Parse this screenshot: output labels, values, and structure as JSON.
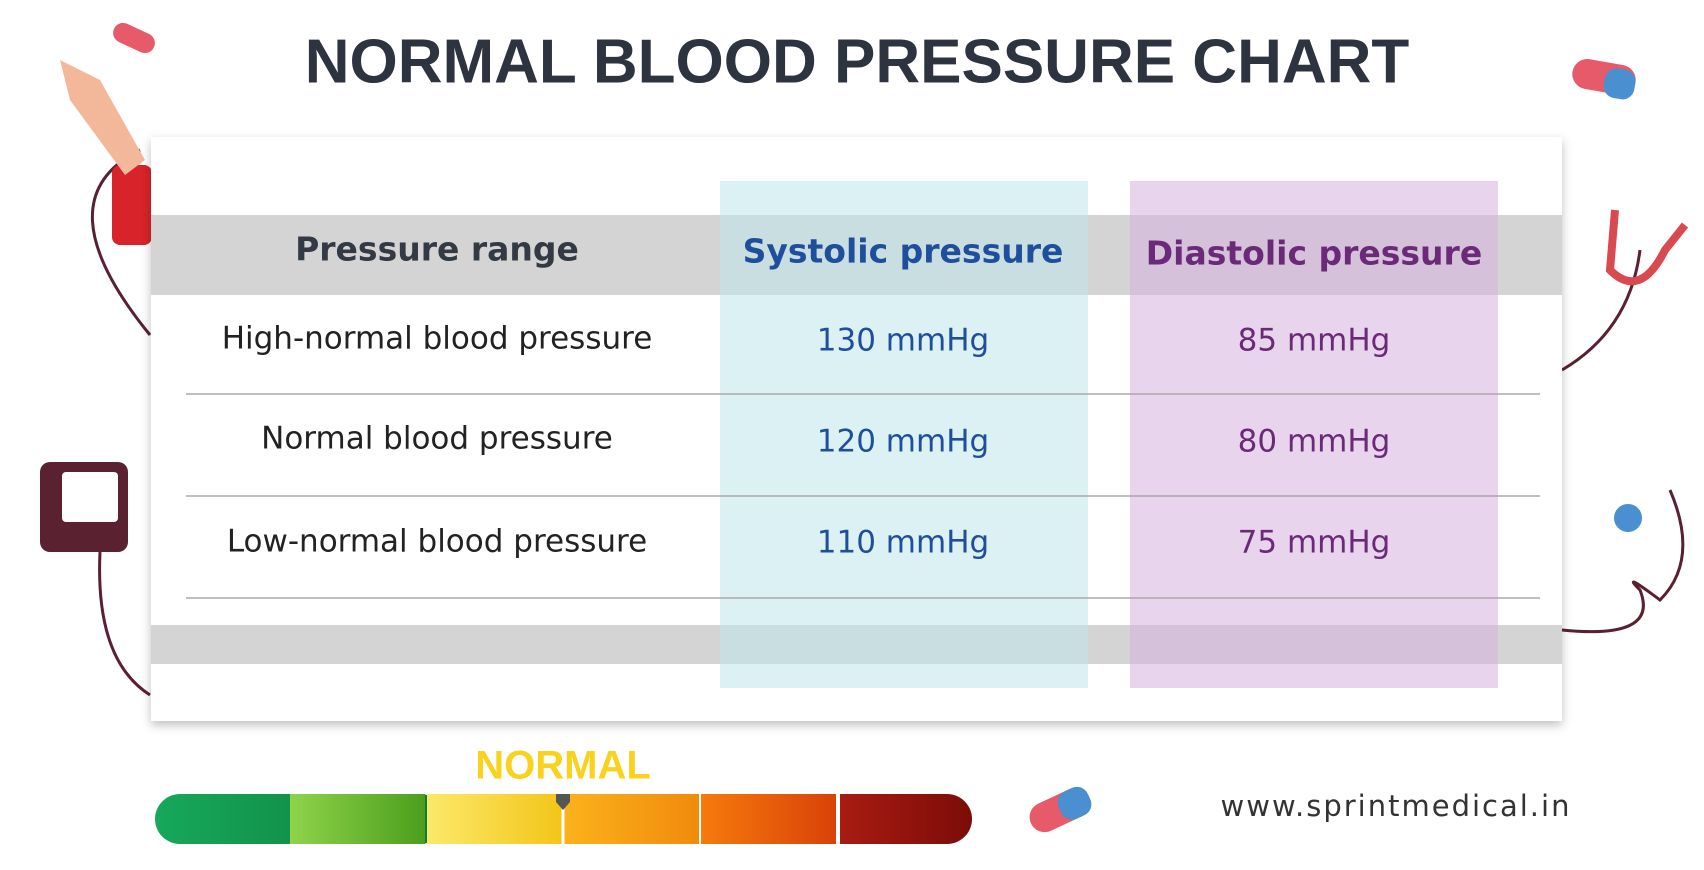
{
  "header": {
    "title": "NORMAL BLOOD PRESSURE CHART"
  },
  "table": {
    "headers": [
      "Pressure range",
      "Systolic pressure",
      "Diastolic pressure"
    ],
    "rows": [
      [
        "High-normal blood pressure",
        "130 mmHg",
        "85 mmHg"
      ],
      [
        "Normal blood pressure",
        "120 mmHg",
        "80 mmHg"
      ],
      [
        "Low-normal blood pressure",
        "110 mmHg",
        "75 mmHg"
      ]
    ]
  },
  "gauge": {
    "label": "NORMAL"
  },
  "footer": {
    "website": "www.sprintmedical.in"
  }
}
